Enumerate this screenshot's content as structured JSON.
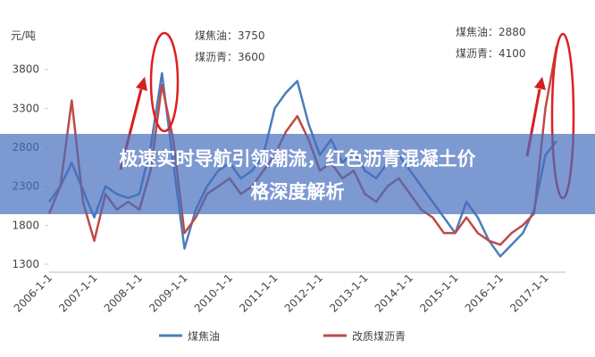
{
  "overlay_title": "极速实时导航引领潮流，红色沥青混凝土价格深度解析",
  "chart_data": {
    "type": "line",
    "y_unit": "元/吨",
    "annotations": [
      "煤焦油：3750",
      "煤沥青：3600",
      "煤焦油：2880",
      "煤沥青：4100"
    ],
    "categories": [
      "2006-1-1",
      null,
      null,
      null,
      "2007-1-1",
      null,
      null,
      null,
      "2008-1-1",
      null,
      null,
      null,
      "2009-1-1",
      null,
      null,
      null,
      "2010-1-1",
      null,
      null,
      null,
      "2011-1-1",
      null,
      null,
      null,
      "2012-1-1",
      null,
      null,
      null,
      "2013-1-1",
      null,
      null,
      null,
      "2014-1-1",
      null,
      null,
      null,
      "2015-1-1",
      null,
      null,
      null,
      "2016-1-1",
      null,
      null,
      null,
      "2017-1-1",
      null
    ],
    "series": [
      {
        "name": "煤焦油",
        "color": "#4a7ebb",
        "values": [
          2100,
          2300,
          2600,
          2250,
          1900,
          2300,
          2200,
          2150,
          2200,
          2800,
          3750,
          2600,
          1500,
          2000,
          2300,
          2500,
          2600,
          2400,
          2500,
          2700,
          3300,
          3500,
          3650,
          3100,
          2700,
          2900,
          2600,
          2750,
          2500,
          2400,
          2600,
          2700,
          2500,
          2300,
          2100,
          1900,
          1700,
          2100,
          1900,
          1600,
          1400,
          1550,
          1700,
          2000,
          2700,
          2880
        ]
      },
      {
        "name": "改质煤沥青",
        "color": "#be4b48",
        "values": [
          1950,
          2300,
          3400,
          2100,
          1600,
          2200,
          2000,
          2100,
          2000,
          2500,
          3600,
          2900,
          1700,
          1900,
          2200,
          2300,
          2400,
          2200,
          2300,
          2500,
          2700,
          3000,
          3200,
          2900,
          2500,
          2600,
          2400,
          2500,
          2200,
          2100,
          2300,
          2400,
          2200,
          2000,
          1900,
          1700,
          1700,
          1900,
          1700,
          1600,
          1550,
          1700,
          1800,
          1950,
          3300,
          4100
        ]
      }
    ],
    "ylim": [
      1300,
      4300
    ],
    "yticks": [
      1300,
      1800,
      2300,
      2800,
      3300,
      3800
    ],
    "grid": false,
    "legend": "bottom"
  }
}
